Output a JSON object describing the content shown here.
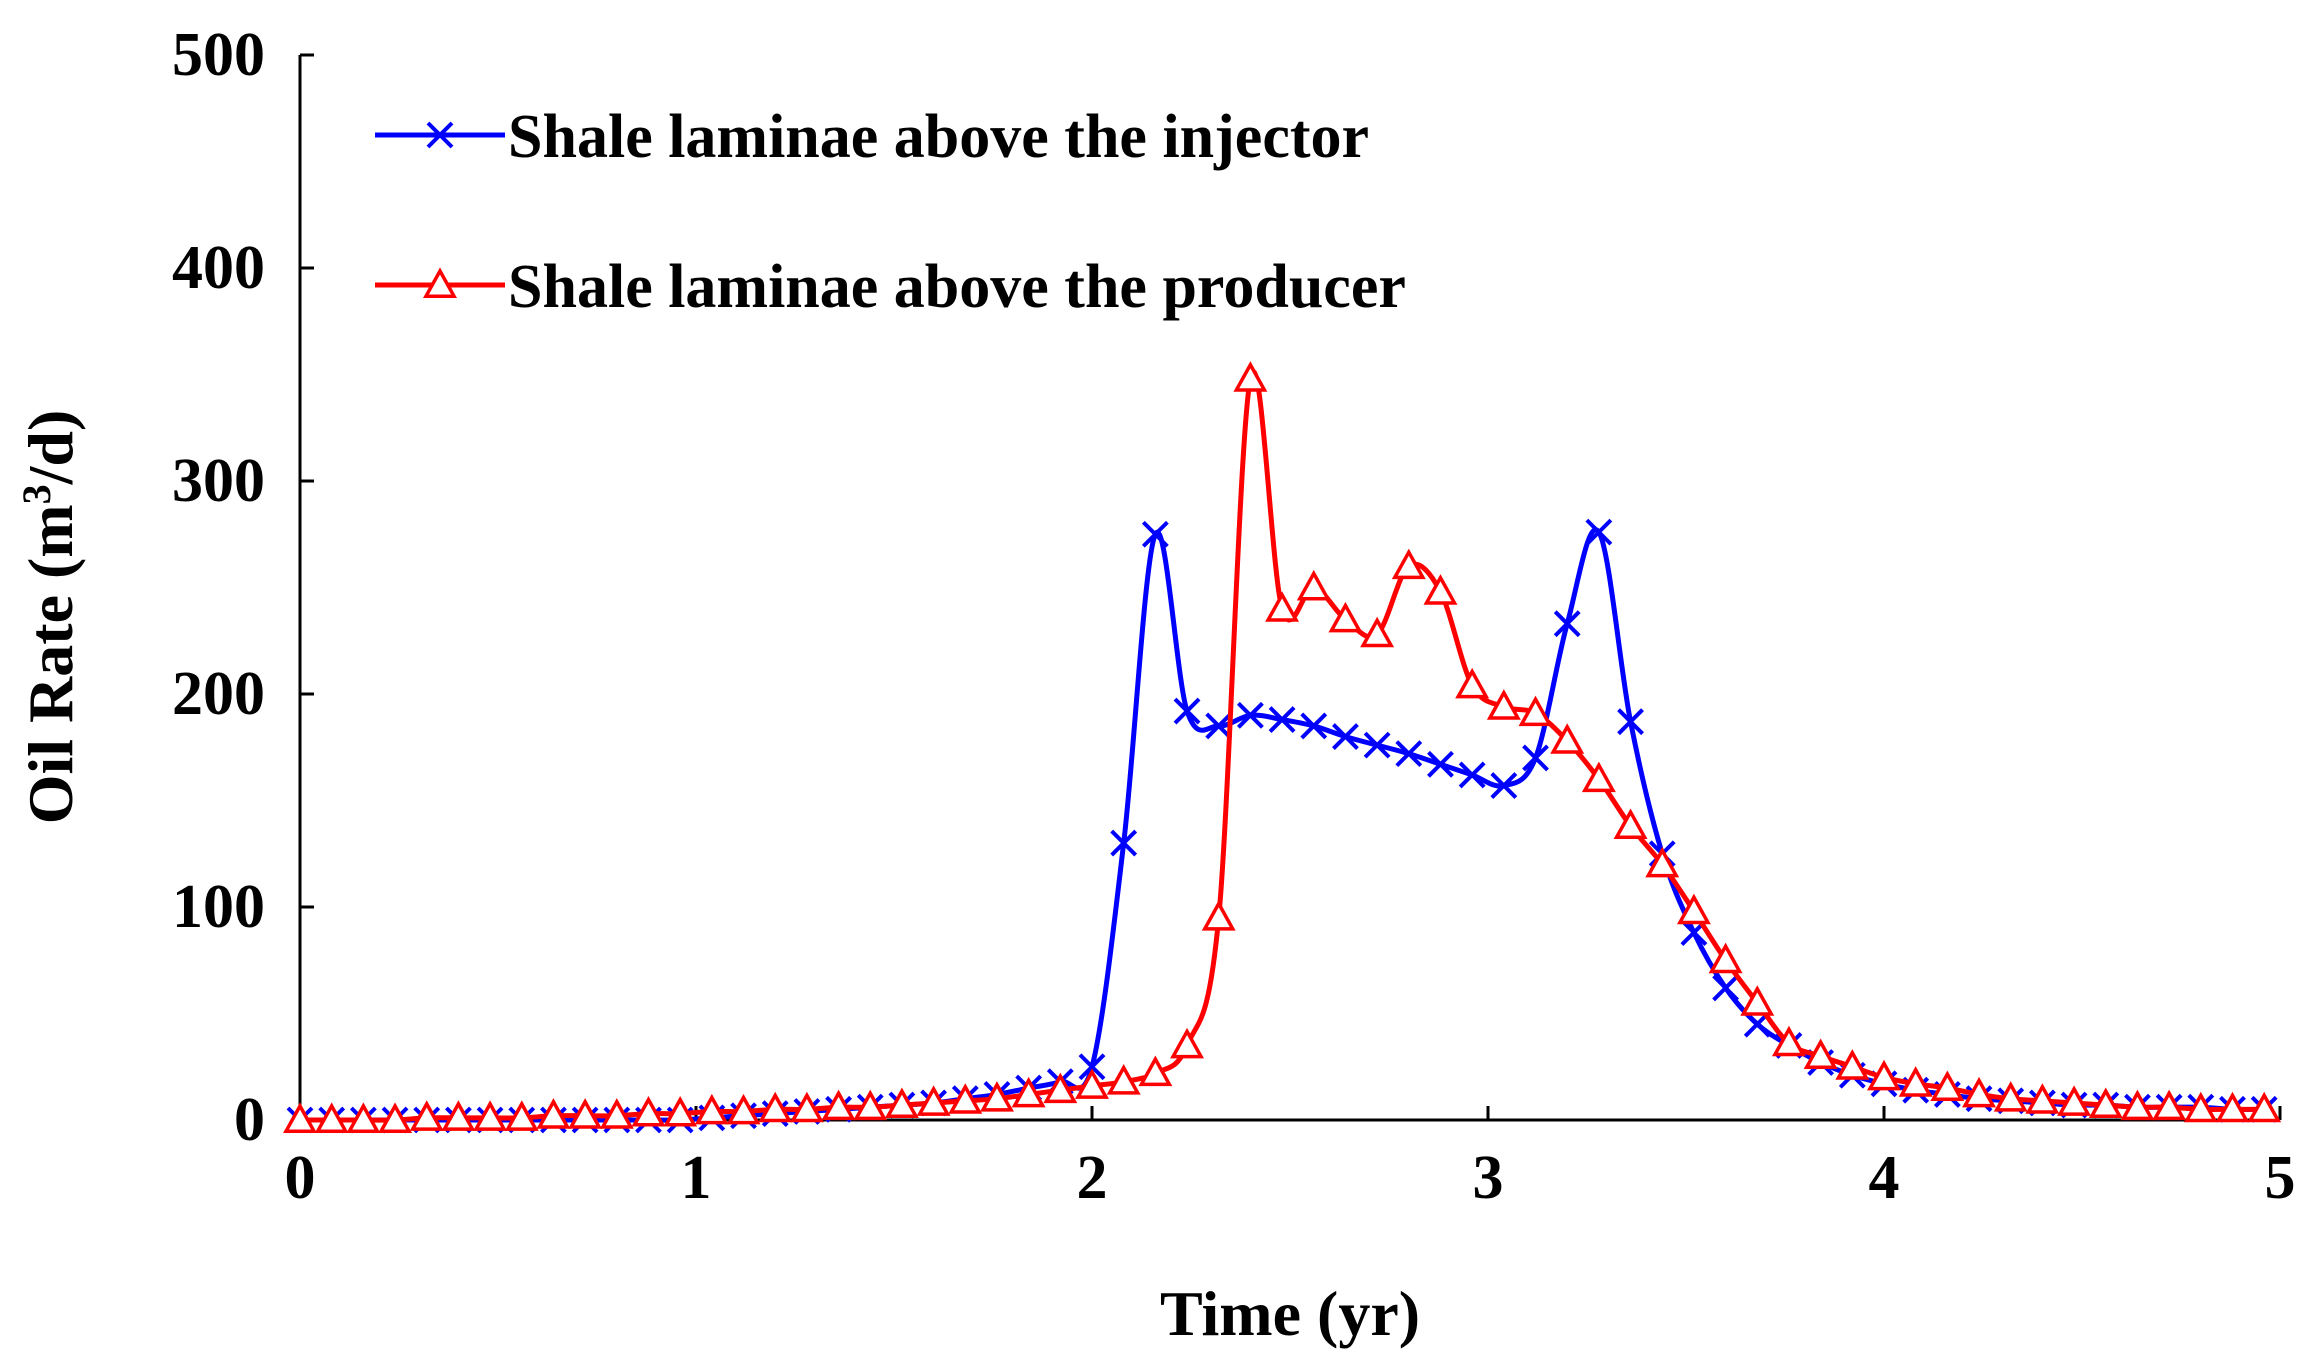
{
  "chart_data": {
    "type": "line",
    "title": "",
    "xlabel": "Time (yr)",
    "ylabel_main": "Oil Rate (m",
    "ylabel_sup": "3",
    "ylabel_tail": "/d)",
    "xlim": [
      0,
      5
    ],
    "ylim": [
      0,
      500
    ],
    "xticks": [
      0,
      1,
      2,
      3,
      4,
      5
    ],
    "yticks": [
      0,
      100,
      200,
      300,
      400,
      500
    ],
    "xtick_labels": [
      "0",
      "1",
      "2",
      "3",
      "4",
      "5"
    ],
    "ytick_labels": [
      "0",
      "100",
      "200",
      "300",
      "400",
      "500"
    ],
    "grid": false,
    "legend_position": "top-left",
    "series": [
      {
        "name": "Shale laminae above the injector",
        "color": "#0000ff",
        "marker": "x",
        "x": [
          0,
          0.08,
          0.16,
          0.24,
          0.32,
          0.4,
          0.48,
          0.56,
          0.64,
          0.72,
          0.8,
          0.88,
          0.96,
          1.04,
          1.12,
          1.2,
          1.28,
          1.36,
          1.44,
          1.52,
          1.6,
          1.68,
          1.76,
          1.84,
          1.92,
          2.0,
          2.08,
          2.16,
          2.24,
          2.32,
          2.4,
          2.48,
          2.56,
          2.64,
          2.72,
          2.8,
          2.88,
          2.96,
          3.04,
          3.12,
          3.2,
          3.28,
          3.36,
          3.44,
          3.52,
          3.6,
          3.68,
          3.76,
          3.84,
          3.92,
          4.0,
          4.08,
          4.16,
          4.24,
          4.32,
          4.4,
          4.48,
          4.56,
          4.64,
          4.72,
          4.8,
          4.88,
          4.96
        ],
        "values": [
          0,
          0,
          0,
          0,
          0,
          0,
          0,
          0,
          0,
          0,
          0,
          0,
          0,
          1,
          2,
          3,
          4,
          5,
          6,
          7,
          8,
          10,
          12,
          15,
          18,
          25,
          130,
          275,
          192,
          185,
          190,
          188,
          185,
          180,
          176,
          172,
          167,
          162,
          157,
          170,
          233,
          276,
          187,
          125,
          88,
          62,
          45,
          35,
          27,
          21,
          17,
          14,
          12,
          10,
          9,
          8,
          7,
          7,
          6,
          6,
          6,
          5,
          5
        ]
      },
      {
        "name": "Shale laminae above the producer",
        "color": "#ff0000",
        "marker": "triangle",
        "x": [
          0,
          0.08,
          0.16,
          0.24,
          0.32,
          0.4,
          0.48,
          0.56,
          0.64,
          0.72,
          0.8,
          0.88,
          0.96,
          1.04,
          1.12,
          1.2,
          1.28,
          1.36,
          1.44,
          1.52,
          1.6,
          1.68,
          1.76,
          1.84,
          1.92,
          2.0,
          2.08,
          2.16,
          2.24,
          2.32,
          2.4,
          2.48,
          2.56,
          2.64,
          2.72,
          2.8,
          2.88,
          2.96,
          3.04,
          3.12,
          3.2,
          3.28,
          3.36,
          3.44,
          3.52,
          3.6,
          3.68,
          3.76,
          3.84,
          3.92,
          4.0,
          4.08,
          4.16,
          4.24,
          4.32,
          4.4,
          4.48,
          4.56,
          4.64,
          4.72,
          4.8,
          4.88,
          4.96
        ],
        "values": [
          0,
          0,
          0,
          0,
          1,
          1,
          1,
          1,
          2,
          2,
          2,
          3,
          3,
          4,
          4,
          5,
          5,
          6,
          6,
          7,
          8,
          9,
          10,
          12,
          14,
          16,
          18,
          22,
          35,
          95,
          348,
          240,
          250,
          235,
          228,
          260,
          248,
          204,
          194,
          191,
          178,
          160,
          138,
          120,
          98,
          75,
          55,
          36,
          30,
          25,
          20,
          17,
          15,
          12,
          10,
          9,
          8,
          7,
          6,
          6,
          5,
          5,
          5
        ]
      }
    ]
  }
}
